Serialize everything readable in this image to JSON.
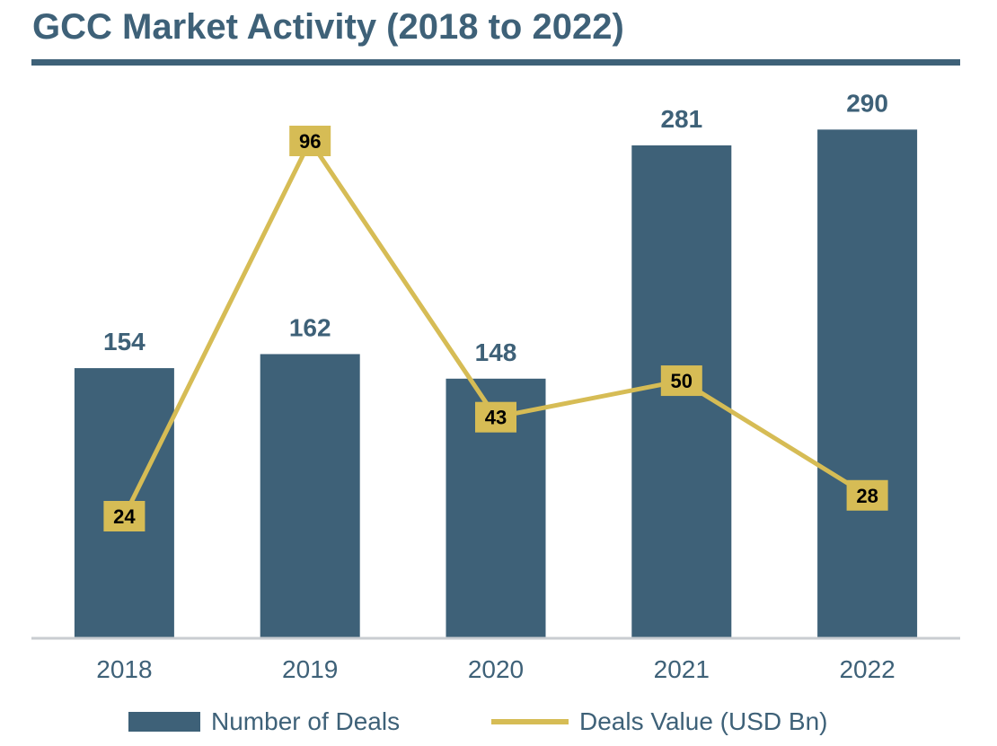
{
  "title": "GCC Market Activity (2018 to 2022)",
  "colors": {
    "bar": "#3e6178",
    "line": "#d6bc55",
    "text": "#3e6178",
    "axis": "#c9cdd1",
    "line_label_text": "#000000"
  },
  "chart_data": {
    "type": "bar",
    "title": "GCC Market Activity (2018 to 2022)",
    "categories": [
      "2018",
      "2019",
      "2020",
      "2021",
      "2022"
    ],
    "series": [
      {
        "name": "Number of Deals",
        "type": "bar",
        "values": [
          154,
          162,
          148,
          281,
          290
        ]
      },
      {
        "name": "Deals Value (USD Bn)",
        "type": "line",
        "values": [
          24,
          96,
          43,
          50,
          28
        ]
      }
    ],
    "legend_position": "bottom",
    "grid": false
  },
  "legend": [
    {
      "label": "Number of Deals",
      "kind": "bar"
    },
    {
      "label": "Deals Value (USD Bn)",
      "kind": "line"
    }
  ]
}
